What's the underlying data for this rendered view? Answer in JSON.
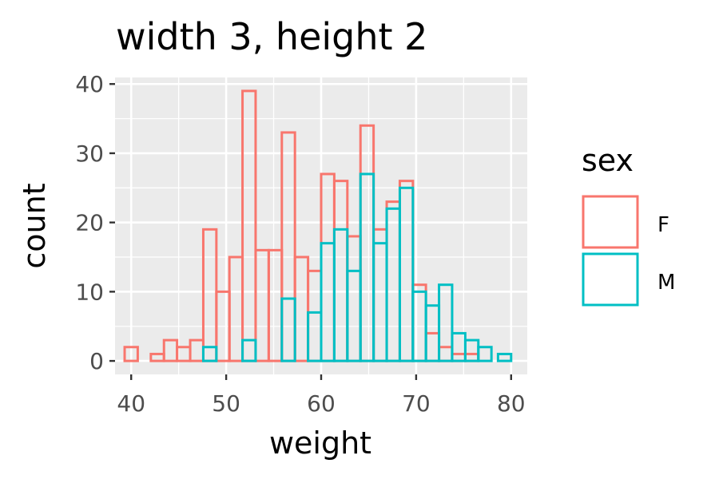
{
  "chart_data": {
    "type": "histogram",
    "title": "width 3, height 2",
    "xlabel": "weight",
    "ylabel": "count",
    "xlim": [
      38.3,
      81.7
    ],
    "ylim": [
      -1.95,
      40.95
    ],
    "x_ticks": [
      40,
      50,
      60,
      70,
      80
    ],
    "y_ticks": [
      0,
      10,
      20,
      30,
      40
    ],
    "x_tick_labels": [
      "40",
      "50",
      "60",
      "70",
      "80"
    ],
    "y_tick_labels": [
      "0",
      "10",
      "20",
      "30",
      "40"
    ],
    "grid": true,
    "bin_width": 1.379,
    "bin_start": 39.31,
    "bin_positions": "dodged",
    "legend": {
      "title": "sex",
      "position": "right",
      "entries": [
        "F",
        "M"
      ]
    },
    "series": [
      {
        "name": "F",
        "color": "#F8766D",
        "bins": [
          {
            "x": 40.0,
            "count": 2
          },
          {
            "x": 42.76,
            "count": 1
          },
          {
            "x": 44.14,
            "count": 3
          },
          {
            "x": 45.52,
            "count": 2
          },
          {
            "x": 46.9,
            "count": 3
          },
          {
            "x": 48.28,
            "count": 19
          },
          {
            "x": 49.66,
            "count": 10
          },
          {
            "x": 51.03,
            "count": 15
          },
          {
            "x": 52.41,
            "count": 39
          },
          {
            "x": 53.79,
            "count": 16
          },
          {
            "x": 55.17,
            "count": 16
          },
          {
            "x": 56.55,
            "count": 33
          },
          {
            "x": 57.93,
            "count": 15
          },
          {
            "x": 59.31,
            "count": 13
          },
          {
            "x": 60.69,
            "count": 27
          },
          {
            "x": 62.07,
            "count": 26
          },
          {
            "x": 63.45,
            "count": 18
          },
          {
            "x": 64.83,
            "count": 34
          },
          {
            "x": 66.21,
            "count": 19
          },
          {
            "x": 67.59,
            "count": 23
          },
          {
            "x": 68.97,
            "count": 26
          },
          {
            "x": 70.34,
            "count": 11
          },
          {
            "x": 71.72,
            "count": 4
          },
          {
            "x": 73.1,
            "count": 2
          },
          {
            "x": 74.48,
            "count": 1
          },
          {
            "x": 75.86,
            "count": 1
          }
        ]
      },
      {
        "name": "M",
        "color": "#00BFC4",
        "bins": [
          {
            "x": 48.28,
            "count": 2
          },
          {
            "x": 52.41,
            "count": 3
          },
          {
            "x": 56.55,
            "count": 9
          },
          {
            "x": 59.31,
            "count": 7
          },
          {
            "x": 60.69,
            "count": 17
          },
          {
            "x": 62.07,
            "count": 19
          },
          {
            "x": 63.45,
            "count": 13
          },
          {
            "x": 64.83,
            "count": 27
          },
          {
            "x": 66.21,
            "count": 17
          },
          {
            "x": 67.59,
            "count": 22
          },
          {
            "x": 68.97,
            "count": 25
          },
          {
            "x": 70.34,
            "count": 10
          },
          {
            "x": 71.72,
            "count": 8
          },
          {
            "x": 73.1,
            "count": 11
          },
          {
            "x": 74.48,
            "count": 4
          },
          {
            "x": 75.86,
            "count": 3
          },
          {
            "x": 77.24,
            "count": 2
          },
          {
            "x": 79.31,
            "count": 1
          }
        ]
      }
    ],
    "colors": {
      "panel_background": "#EBEBEB",
      "grid": "#FFFFFF",
      "F": "#F8766D",
      "M": "#00BFC4"
    }
  }
}
